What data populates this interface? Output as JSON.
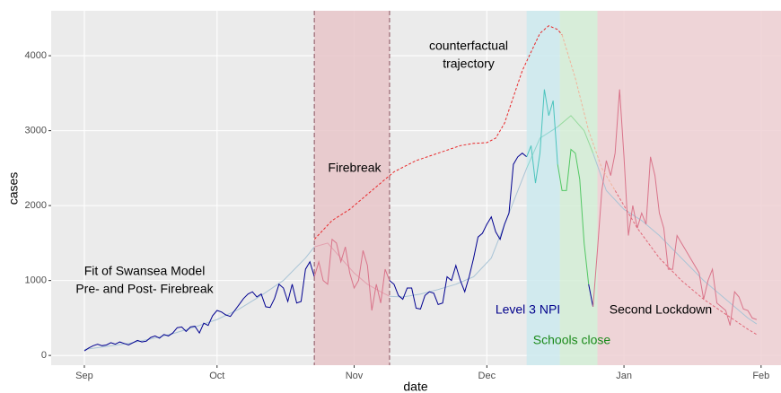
{
  "chart_data": {
    "type": "line",
    "x_label": "date",
    "y_label": "cases",
    "xlim": [
      -7.5,
      157.5
    ],
    "ylim": [
      -130,
      4600
    ],
    "xticks": [
      {
        "value": 0,
        "label": "Sep"
      },
      {
        "value": 30,
        "label": "Oct"
      },
      {
        "value": 61,
        "label": "Nov"
      },
      {
        "value": 91,
        "label": "Dec"
      },
      {
        "value": 122,
        "label": "Jan"
      },
      {
        "value": 153,
        "label": "Feb"
      }
    ],
    "yticks": [
      0,
      1000,
      2000,
      3000,
      4000
    ],
    "grid": true,
    "regions": [
      {
        "start": 52,
        "end": 69,
        "color": "#e8c6c9",
        "border": true
      },
      {
        "start": 100,
        "end": 107.5,
        "color": "#cdeaee",
        "border": false
      },
      {
        "start": 107.5,
        "end": 116,
        "color": "#d3edd6",
        "border": false
      },
      {
        "start": 116,
        "end": 157.5,
        "color": "#efd0d3",
        "border": false
      }
    ],
    "annotations": [
      {
        "lines": [
          "counterfactual",
          "trajectory"
        ],
        "color": "#000000"
      },
      {
        "lines": [
          "Firebreak"
        ],
        "color": "#000000"
      },
      {
        "lines": [
          "Fit of Swansea Model",
          "Pre- and Post- Firebreak"
        ],
        "color": "#000000"
      },
      {
        "lines": [
          "Level 3 NPI"
        ],
        "color": "#00008b"
      },
      {
        "lines": [
          "Schools close"
        ],
        "color": "#1a8a1a"
      },
      {
        "lines": [
          "Second Lockdown"
        ],
        "color": "#000000"
      }
    ],
    "series": [
      {
        "color": "#a9c4d6",
        "dash": false,
        "x": [
          0,
          5,
          10,
          15,
          20,
          25,
          30,
          35,
          40,
          45,
          50,
          52
        ],
        "values": [
          80,
          120,
          160,
          220,
          290,
          380,
          480,
          620,
          800,
          1000,
          1300,
          1450
        ]
      },
      {
        "color": "#e3a0ae",
        "dash": false,
        "x": [
          52,
          55,
          58,
          61,
          64,
          67,
          69
        ],
        "values": [
          1450,
          1500,
          1300,
          1100,
          950,
          850,
          790
        ]
      },
      {
        "color": "#a9c4d6",
        "dash": false,
        "x": [
          69,
          72,
          76,
          80,
          84,
          88,
          92,
          96,
          100
        ],
        "values": [
          790,
          780,
          820,
          880,
          950,
          1050,
          1300,
          1900,
          2500
        ]
      },
      {
        "color": "#8fd6d0",
        "dash": false,
        "x": [
          100,
          103,
          107
        ],
        "values": [
          2500,
          2900,
          3050
        ]
      },
      {
        "color": "#94d99c",
        "dash": false,
        "x": [
          107,
          110,
          113,
          115
        ],
        "values": [
          3050,
          3200,
          3000,
          2700
        ]
      },
      {
        "color": "#a9c4d6",
        "dash": false,
        "x": [
          115,
          118,
          122,
          126,
          130,
          135,
          140,
          145,
          150,
          152
        ],
        "values": [
          2700,
          2200,
          1950,
          1800,
          1600,
          1300,
          1000,
          750,
          500,
          420
        ]
      },
      {
        "color": "#000090",
        "dash": false,
        "x": [
          0,
          1,
          2,
          3,
          4,
          5,
          6,
          7,
          8,
          9,
          10,
          11,
          12,
          13,
          14,
          15,
          16,
          17,
          18,
          19,
          20,
          21,
          22,
          23,
          24,
          25,
          26,
          27,
          28,
          29,
          30,
          31,
          32,
          33,
          34,
          35,
          36,
          37,
          38,
          39,
          40,
          41,
          42,
          43,
          44,
          45,
          46,
          47,
          48,
          49,
          50,
          51,
          52
        ],
        "values": [
          60,
          100,
          130,
          150,
          130,
          140,
          170,
          150,
          180,
          160,
          140,
          170,
          200,
          180,
          190,
          240,
          260,
          230,
          280,
          260,
          300,
          370,
          380,
          320,
          380,
          390,
          300,
          430,
          400,
          530,
          600,
          580,
          540,
          520,
          600,
          680,
          760,
          820,
          850,
          780,
          820,
          650,
          640,
          760,
          950,
          900,
          720,
          950,
          700,
          720,
          1150,
          1250,
          1050
        ]
      },
      {
        "color": "#d9748a",
        "dash": false,
        "x": [
          52,
          53,
          54,
          55,
          56,
          57,
          58,
          59,
          60,
          61,
          62,
          63,
          64,
          65,
          66,
          67,
          68,
          69
        ],
        "values": [
          1050,
          1250,
          1000,
          950,
          1550,
          1500,
          1250,
          1450,
          1100,
          900,
          1000,
          1400,
          1200,
          600,
          950,
          700,
          1150,
          1000
        ]
      },
      {
        "color": "#000090",
        "dash": false,
        "x": [
          69,
          70,
          71,
          72,
          73,
          74,
          75,
          76,
          77,
          78,
          79,
          80,
          81,
          82,
          83,
          84,
          85,
          86,
          87,
          88,
          89,
          90,
          91,
          92,
          93,
          94,
          95,
          96,
          97,
          98,
          99,
          100
        ],
        "values": [
          1000,
          950,
          800,
          750,
          900,
          900,
          630,
          620,
          800,
          850,
          830,
          680,
          700,
          1050,
          1000,
          1200,
          1000,
          850,
          1050,
          1300,
          1580,
          1630,
          1750,
          1850,
          1650,
          1550,
          1750,
          1900,
          2550,
          2650,
          2700,
          2650
        ]
      },
      {
        "color": "#4cc4bd",
        "dash": false,
        "x": [
          100,
          101,
          102,
          103,
          104,
          105,
          106,
          107
        ],
        "values": [
          2650,
          2800,
          2300,
          2700,
          3550,
          3200,
          3400,
          2550
        ]
      },
      {
        "color": "#52c763",
        "dash": false,
        "x": [
          107,
          108,
          109,
          110,
          111,
          112,
          113,
          114
        ],
        "values": [
          2550,
          2200,
          2200,
          2750,
          2700,
          2350,
          1500,
          950
        ]
      },
      {
        "color": "#000090",
        "dash": false,
        "x": [
          114,
          115
        ],
        "values": [
          950,
          650
        ]
      },
      {
        "color": "#d9748a",
        "dash": false,
        "x": [
          115,
          116,
          117,
          118,
          119,
          120,
          121,
          122,
          123,
          124,
          125,
          126,
          127,
          128,
          129,
          130,
          131,
          132,
          133,
          134,
          135,
          136,
          137,
          138,
          139,
          140,
          141,
          142,
          143,
          144,
          145,
          146,
          147,
          148,
          149,
          150,
          151,
          152
        ],
        "values": [
          650,
          1400,
          2200,
          2600,
          2400,
          2700,
          3550,
          2650,
          1600,
          2000,
          1700,
          1900,
          1750,
          2650,
          2400,
          1900,
          1700,
          1150,
          1150,
          1600,
          1500,
          1400,
          1300,
          1200,
          1100,
          750,
          1000,
          1150,
          700,
          650,
          600,
          400,
          850,
          780,
          620,
          600,
          500,
          480
        ]
      },
      {
        "color": "#e8282a",
        "dash": true,
        "x": [
          52,
          56,
          60,
          65,
          70,
          75,
          80,
          85,
          88,
          91,
          93,
          95,
          97,
          99,
          101,
          103,
          105,
          107,
          108
        ],
        "values": [
          1550,
          1800,
          1950,
          2200,
          2450,
          2600,
          2700,
          2800,
          2830,
          2840,
          2900,
          3100,
          3450,
          3800,
          4050,
          4300,
          4400,
          4350,
          4280
        ]
      },
      {
        "color": "#f0b49c",
        "dash": true,
        "x": [
          108,
          111,
          114,
          117,
          120
        ],
        "values": [
          4280,
          3700,
          3000,
          2500,
          2200
        ]
      },
      {
        "color": "#e06878",
        "dash": true,
        "x": [
          120,
          125,
          130,
          135,
          140,
          145,
          150,
          152
        ],
        "values": [
          2200,
          1700,
          1300,
          1000,
          750,
          550,
          350,
          280
        ]
      }
    ]
  }
}
